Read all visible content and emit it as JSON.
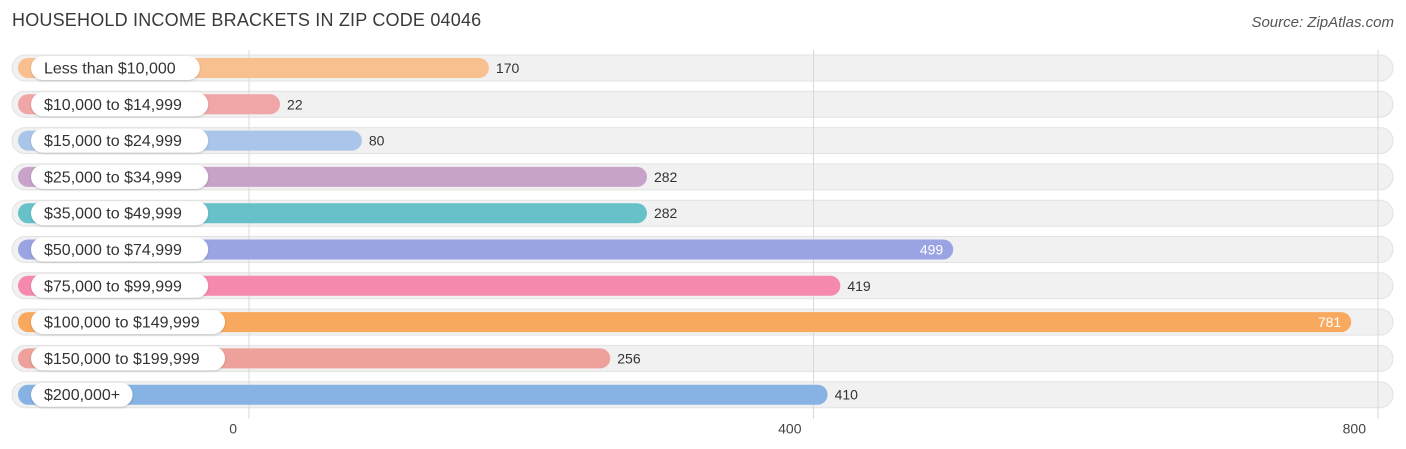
{
  "title": "HOUSEHOLD INCOME BRACKETS IN ZIP CODE 04046",
  "source": "Source: ZipAtlas.com",
  "chart_data": {
    "type": "bar",
    "orientation": "horizontal",
    "title": "HOUSEHOLD INCOME BRACKETS IN ZIP CODE 04046",
    "xlabel": "",
    "ylabel": "",
    "xlim": [
      0,
      800
    ],
    "xticks": [
      0,
      400,
      800
    ],
    "categories": [
      "Less than $10,000",
      "$10,000 to $14,999",
      "$15,000 to $24,999",
      "$25,000 to $34,999",
      "$35,000 to $49,999",
      "$50,000 to $74,999",
      "$75,000 to $99,999",
      "$100,000 to $149,999",
      "$150,000 to $199,999",
      "$200,000+"
    ],
    "values": [
      170,
      22,
      80,
      282,
      282,
      499,
      419,
      781,
      256,
      410
    ],
    "colors": [
      "#f9c08f",
      "#f0a6a6",
      "#a9c6ea",
      "#c7a2c9",
      "#67c1c9",
      "#9ba4e3",
      "#f58aae",
      "#f9a95d",
      "#eea19b",
      "#86b2e4"
    ]
  }
}
